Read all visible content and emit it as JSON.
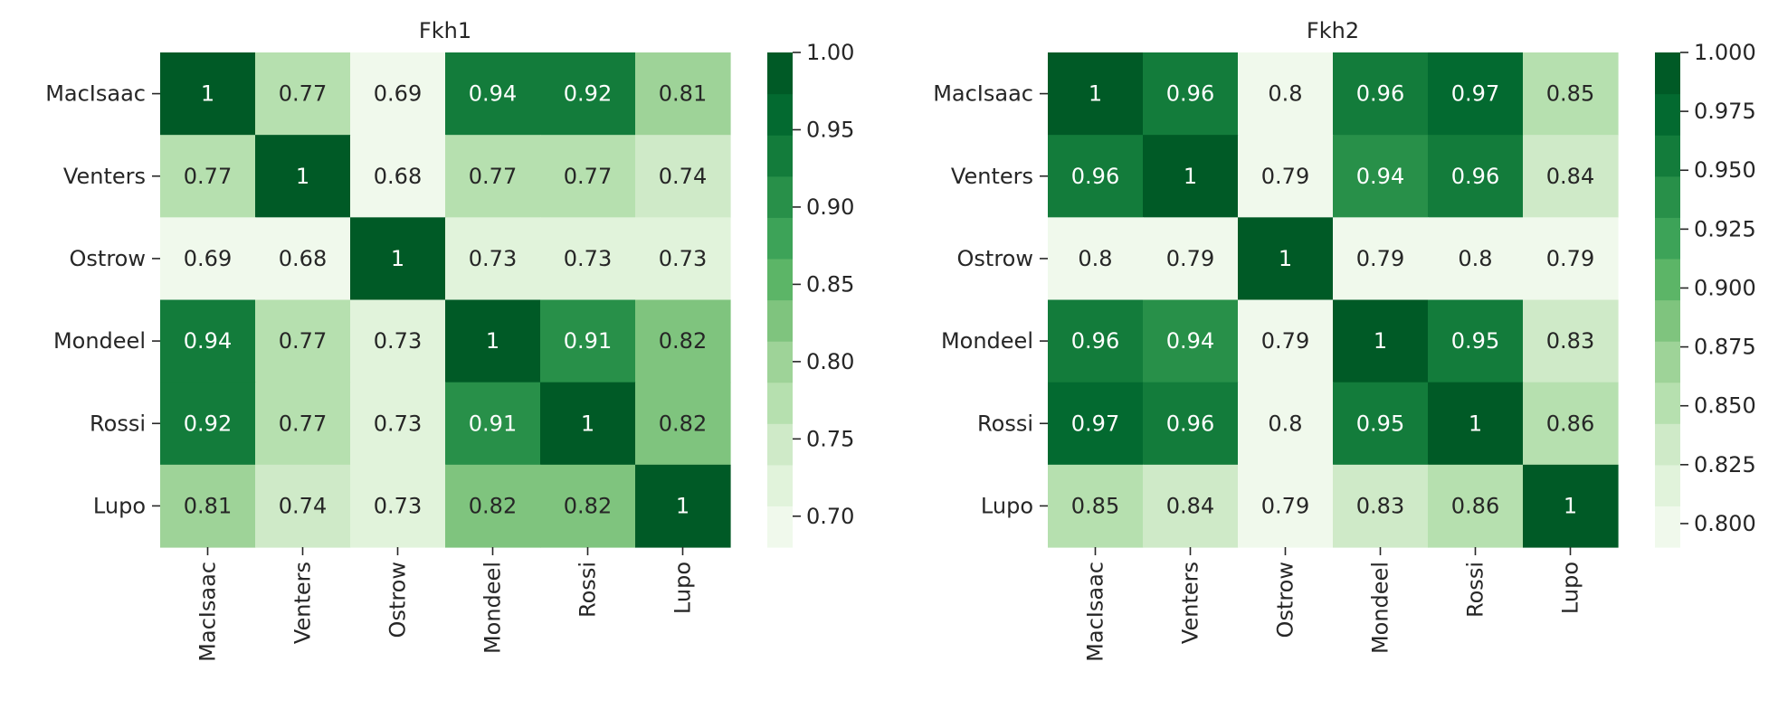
{
  "chart_data": [
    {
      "type": "heatmap",
      "title": "Fkh1",
      "row_labels": [
        "MacIsaac",
        "Venters",
        "Ostrow",
        "Mondeel",
        "Rossi",
        "Lupo"
      ],
      "col_labels": [
        "MacIsaac",
        "Venters",
        "Ostrow",
        "Mondeel",
        "Rossi",
        "Lupo"
      ],
      "values": [
        [
          1,
          0.77,
          0.69,
          0.94,
          0.92,
          0.81
        ],
        [
          0.77,
          1,
          0.68,
          0.77,
          0.77,
          0.74
        ],
        [
          0.69,
          0.68,
          1,
          0.73,
          0.73,
          0.73
        ],
        [
          0.94,
          0.77,
          0.73,
          1,
          0.91,
          0.82
        ],
        [
          0.92,
          0.77,
          0.73,
          0.91,
          1,
          0.82
        ],
        [
          0.81,
          0.74,
          0.73,
          0.82,
          0.82,
          1
        ]
      ],
      "labels": [
        [
          "1",
          "0.77",
          "0.69",
          "0.94",
          "0.92",
          "0.81"
        ],
        [
          "0.77",
          "1",
          "0.68",
          "0.77",
          "0.77",
          "0.74"
        ],
        [
          "0.69",
          "0.68",
          "1",
          "0.73",
          "0.73",
          "0.73"
        ],
        [
          "0.94",
          "0.77",
          "0.73",
          "1",
          "0.91",
          "0.82"
        ],
        [
          "0.92",
          "0.77",
          "0.73",
          "0.91",
          "1",
          "0.82"
        ],
        [
          "0.81",
          "0.74",
          "0.73",
          "0.82",
          "0.82",
          "1"
        ]
      ],
      "vmin": 0.68,
      "vmax": 1.0,
      "colorbar_ticks": [
        {
          "value": 0.7,
          "label": "0.70"
        },
        {
          "value": 0.75,
          "label": "0.75"
        },
        {
          "value": 0.8,
          "label": "0.80"
        },
        {
          "value": 0.85,
          "label": "0.85"
        },
        {
          "value": 0.9,
          "label": "0.90"
        },
        {
          "value": 0.95,
          "label": "0.95"
        },
        {
          "value": 1.0,
          "label": "1.00"
        }
      ]
    },
    {
      "type": "heatmap",
      "title": "Fkh2",
      "row_labels": [
        "MacIsaac",
        "Venters",
        "Ostrow",
        "Mondeel",
        "Rossi",
        "Lupo"
      ],
      "col_labels": [
        "MacIsaac",
        "Venters",
        "Ostrow",
        "Mondeel",
        "Rossi",
        "Lupo"
      ],
      "values": [
        [
          1,
          0.96,
          0.8,
          0.96,
          0.97,
          0.85
        ],
        [
          0.96,
          1,
          0.79,
          0.94,
          0.96,
          0.84
        ],
        [
          0.8,
          0.79,
          1,
          0.79,
          0.8,
          0.79
        ],
        [
          0.96,
          0.94,
          0.79,
          1,
          0.95,
          0.83
        ],
        [
          0.97,
          0.96,
          0.8,
          0.95,
          1,
          0.86
        ],
        [
          0.85,
          0.84,
          0.79,
          0.83,
          0.86,
          1
        ]
      ],
      "labels": [
        [
          "1",
          "0.96",
          "0.8",
          "0.96",
          "0.97",
          "0.85"
        ],
        [
          "0.96",
          "1",
          "0.79",
          "0.94",
          "0.96",
          "0.84"
        ],
        [
          "0.8",
          "0.79",
          "1",
          "0.79",
          "0.8",
          "0.79"
        ],
        [
          "0.96",
          "0.94",
          "0.79",
          "1",
          "0.95",
          "0.83"
        ],
        [
          "0.97",
          "0.96",
          "0.8",
          "0.95",
          "1",
          "0.86"
        ],
        [
          "0.85",
          "0.84",
          "0.79",
          "0.83",
          "0.86",
          "1"
        ]
      ],
      "vmin": 0.79,
      "vmax": 1.0,
      "colorbar_ticks": [
        {
          "value": 0.8,
          "label": "0.800"
        },
        {
          "value": 0.825,
          "label": "0.825"
        },
        {
          "value": 0.85,
          "label": "0.850"
        },
        {
          "value": 0.875,
          "label": "0.875"
        },
        {
          "value": 0.9,
          "label": "0.900"
        },
        {
          "value": 0.925,
          "label": "0.925"
        },
        {
          "value": 0.95,
          "label": "0.950"
        },
        {
          "value": 0.975,
          "label": "0.975"
        },
        {
          "value": 1.0,
          "label": "1.000"
        }
      ]
    }
  ],
  "colormap": {
    "name": "Greens",
    "steps": [
      "#f0f9ec",
      "#e1f3db",
      "#cfeac8",
      "#b6e0af",
      "#9ed398",
      "#7fc47e",
      "#5cb567",
      "#3da358",
      "#289049",
      "#137c3b",
      "#036a30",
      "#005a26"
    ]
  }
}
